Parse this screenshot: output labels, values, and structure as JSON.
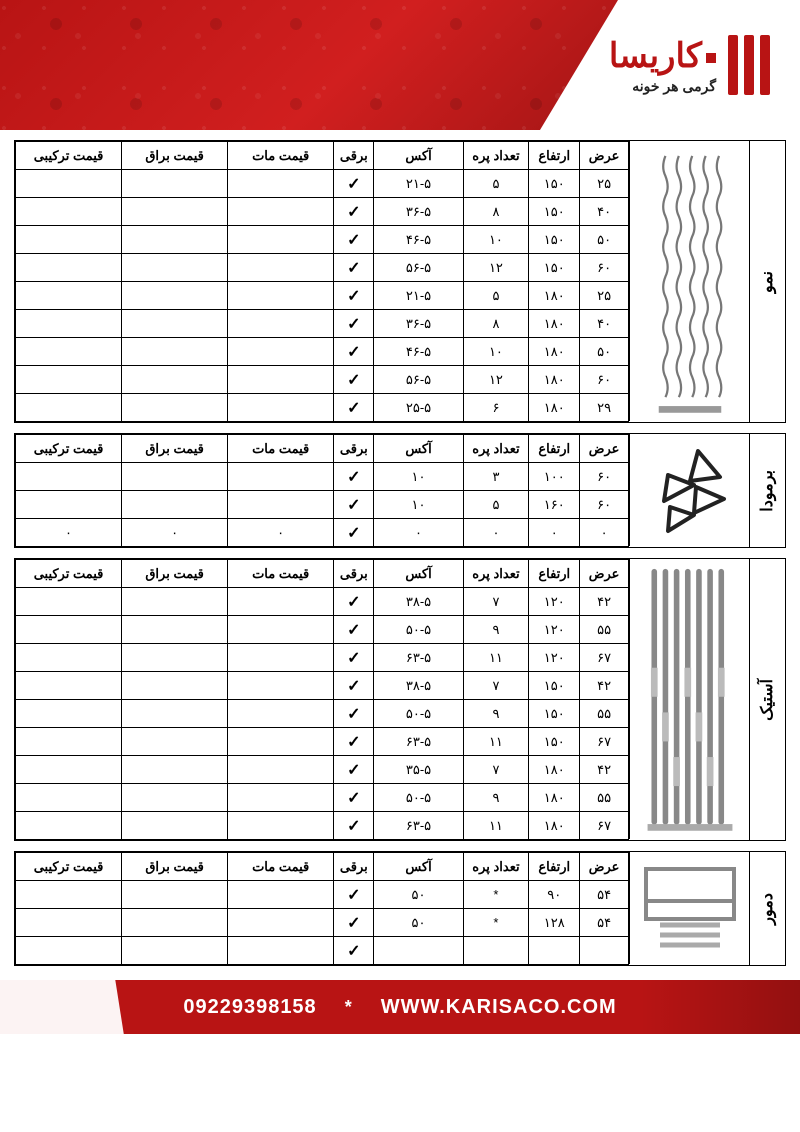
{
  "brand": {
    "title": "کاریسا",
    "subtitle": "گرمی هر خونه"
  },
  "columns": {
    "width": "عرض",
    "height": "ارتفاع",
    "fins": "تعداد پره",
    "axis": "آکس",
    "electric": "برقی",
    "matte": "قیمت مات",
    "gloss": "قیمت براق",
    "combo": "قیمت ترکیبی"
  },
  "sections": [
    {
      "name": "نمو",
      "image": "nemo",
      "rows": [
        {
          "width": "۲۵",
          "height": "۱۵۰",
          "fins": "۵",
          "axis": "۲۱-۵",
          "elec": true,
          "m": "",
          "g": "",
          "c": ""
        },
        {
          "width": "۴۰",
          "height": "۱۵۰",
          "fins": "۸",
          "axis": "۳۶-۵",
          "elec": true,
          "m": "",
          "g": "",
          "c": ""
        },
        {
          "width": "۵۰",
          "height": "۱۵۰",
          "fins": "۱۰",
          "axis": "۴۶-۵",
          "elec": true,
          "m": "",
          "g": "",
          "c": ""
        },
        {
          "width": "۶۰",
          "height": "۱۵۰",
          "fins": "۱۲",
          "axis": "۵۶-۵",
          "elec": true,
          "m": "",
          "g": "",
          "c": ""
        },
        {
          "width": "۲۵",
          "height": "۱۸۰",
          "fins": "۵",
          "axis": "۲۱-۵",
          "elec": true,
          "m": "",
          "g": "",
          "c": ""
        },
        {
          "width": "۴۰",
          "height": "۱۸۰",
          "fins": "۸",
          "axis": "۳۶-۵",
          "elec": true,
          "m": "",
          "g": "",
          "c": ""
        },
        {
          "width": "۵۰",
          "height": "۱۸۰",
          "fins": "۱۰",
          "axis": "۴۶-۵",
          "elec": true,
          "m": "",
          "g": "",
          "c": ""
        },
        {
          "width": "۶۰",
          "height": "۱۸۰",
          "fins": "۱۲",
          "axis": "۵۶-۵",
          "elec": true,
          "m": "",
          "g": "",
          "c": ""
        },
        {
          "width": "۲۹",
          "height": "۱۸۰",
          "fins": "۶",
          "axis": "۲۵-۵",
          "elec": true,
          "m": "",
          "g": "",
          "c": ""
        }
      ]
    },
    {
      "name": "برمودا",
      "image": "bermuda",
      "rows": [
        {
          "width": "۶۰",
          "height": "۱۰۰",
          "fins": "۳",
          "axis": "۱۰",
          "elec": true,
          "m": "",
          "g": "",
          "c": ""
        },
        {
          "width": "۶۰",
          "height": "۱۶۰",
          "fins": "۵",
          "axis": "۱۰",
          "elec": true,
          "m": "",
          "g": "",
          "c": ""
        },
        {
          "width": "۰",
          "height": "۰",
          "fins": "۰",
          "axis": "۰",
          "elec": true,
          "m": "۰",
          "g": "۰",
          "c": "۰"
        }
      ]
    },
    {
      "name": "آستیک",
      "image": "astik",
      "rows": [
        {
          "width": "۴۲",
          "height": "۱۲۰",
          "fins": "۷",
          "axis": "۳۸-۵",
          "elec": true,
          "m": "",
          "g": "",
          "c": ""
        },
        {
          "width": "۵۵",
          "height": "۱۲۰",
          "fins": "۹",
          "axis": "۵۰-۵",
          "elec": true,
          "m": "",
          "g": "",
          "c": ""
        },
        {
          "width": "۶۷",
          "height": "۱۲۰",
          "fins": "۱۱",
          "axis": "۶۳-۵",
          "elec": true,
          "m": "",
          "g": "",
          "c": ""
        },
        {
          "width": "۴۲",
          "height": "۱۵۰",
          "fins": "۷",
          "axis": "۳۸-۵",
          "elec": true,
          "m": "",
          "g": "",
          "c": ""
        },
        {
          "width": "۵۵",
          "height": "۱۵۰",
          "fins": "۹",
          "axis": "۵۰-۵",
          "elec": true,
          "m": "",
          "g": "",
          "c": ""
        },
        {
          "width": "۶۷",
          "height": "۱۵۰",
          "fins": "۱۱",
          "axis": "۶۳-۵",
          "elec": true,
          "m": "",
          "g": "",
          "c": ""
        },
        {
          "width": "۴۲",
          "height": "۱۸۰",
          "fins": "۷",
          "axis": "۳۵-۵",
          "elec": true,
          "m": "",
          "g": "",
          "c": ""
        },
        {
          "width": "۵۵",
          "height": "۱۸۰",
          "fins": "۹",
          "axis": "۵۰-۵",
          "elec": true,
          "m": "",
          "g": "",
          "c": ""
        },
        {
          "width": "۶۷",
          "height": "۱۸۰",
          "fins": "۱۱",
          "axis": "۶۳-۵",
          "elec": true,
          "m": "",
          "g": "",
          "c": ""
        }
      ]
    },
    {
      "name": "دمور",
      "image": "damour",
      "rows": [
        {
          "width": "۵۴",
          "height": "۹۰",
          "fins": "*",
          "axis": "۵۰",
          "elec": true,
          "m": "",
          "g": "",
          "c": ""
        },
        {
          "width": "۵۴",
          "height": "۱۲۸",
          "fins": "*",
          "axis": "۵۰",
          "elec": true,
          "m": "",
          "g": "",
          "c": ""
        },
        {
          "width": "",
          "height": "",
          "fins": "",
          "axis": "",
          "elec": true,
          "m": "",
          "g": "",
          "c": ""
        }
      ]
    }
  ],
  "footer": {
    "url": "WWW.KARISACO.COM",
    "sep": "*",
    "phone": "09229398158"
  }
}
